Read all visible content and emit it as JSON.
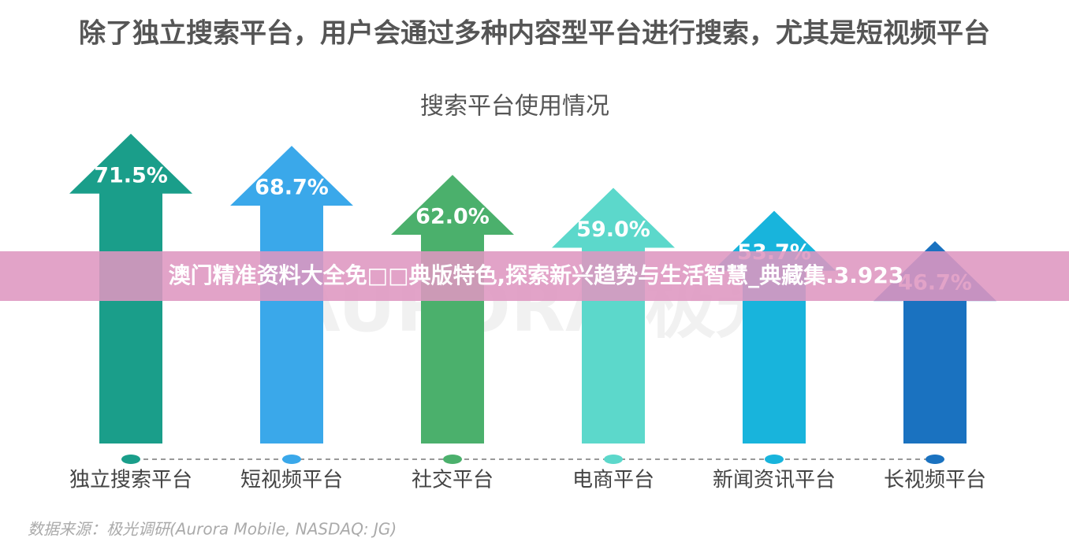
{
  "chart_data": {
    "type": "arrow-bar",
    "title": "除了独立搜索平台，用户会通过多种内容型平台进行搜索，尤其是短视频平台",
    "subtitle": "搜索平台使用情况",
    "categories": [
      "独立搜索平台",
      "短视频平台",
      "社交平台",
      "电商平台",
      "新闻资讯平台",
      "长视频平台"
    ],
    "values": [
      71.5,
      68.7,
      62.0,
      59.0,
      53.7,
      46.7
    ],
    "value_labels": [
      "71.5%",
      "68.7%",
      "62.0%",
      "59.0%",
      "53.7%",
      "46.7%"
    ],
    "colors": [
      "#1a9e8a",
      "#3aa8ea",
      "#4bb06c",
      "#5cd8cb",
      "#18b4dc",
      "#1a72c0"
    ],
    "source": "数据来源：极光调研(Aurora Mobile, NASDAQ: JG)",
    "watermark": "AURORA 极光"
  },
  "overlay": {
    "banner": "澳门精准资料大全免□□典版特色,探索新兴趋势与生活智慧_典藏集.3.923"
  }
}
